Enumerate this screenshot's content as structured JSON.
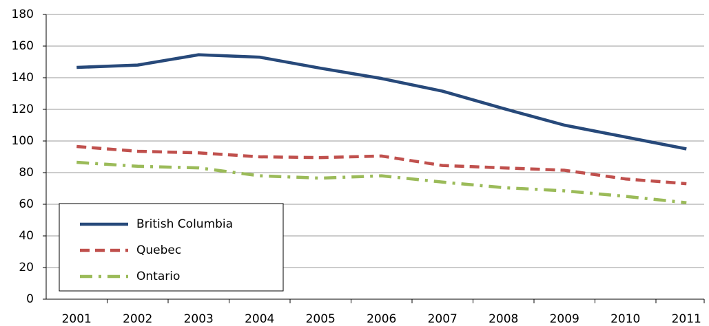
{
  "chart_data": {
    "type": "line",
    "categories": [
      "2001",
      "2002",
      "2003",
      "2004",
      "2005",
      "2006",
      "2007",
      "2008",
      "2009",
      "2010",
      "2011"
    ],
    "series": [
      {
        "name": "British Columbia",
        "color": "#27497a",
        "dash": "solid",
        "values": [
          146.5,
          148,
          154.5,
          153,
          146,
          139.5,
          131.5,
          120.5,
          110,
          102.5,
          95
        ]
      },
      {
        "name": "Quebec",
        "color": "#c0504d",
        "dash": "dashed",
        "values": [
          96.5,
          93.5,
          92.5,
          90,
          89.5,
          90.5,
          84.5,
          83,
          81.5,
          76,
          73
        ]
      },
      {
        "name": "Ontario",
        "color": "#9bbb59",
        "dash": "dash-dot",
        "values": [
          86.5,
          84,
          83,
          78,
          76.5,
          78,
          74,
          70.5,
          68.5,
          65,
          61
        ]
      }
    ],
    "ylim": [
      0,
      180
    ],
    "yticks": [
      0,
      20,
      40,
      60,
      80,
      100,
      120,
      140,
      160,
      180
    ],
    "grid": true,
    "legend": "lower left"
  }
}
